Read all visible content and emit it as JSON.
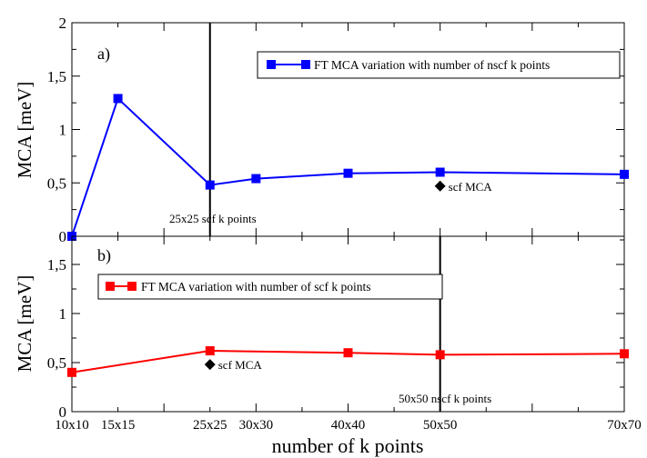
{
  "chart_data": [
    {
      "type": "line",
      "panel_label": "a)",
      "ylabel": "MCA [meV]",
      "ylim": [
        0,
        2
      ],
      "yticks": [
        0,
        0.5,
        1,
        1.5,
        2
      ],
      "ytick_labels": [
        "0",
        "0,5",
        "1",
        "1,5",
        "2"
      ],
      "xlim": [
        10,
        70
      ],
      "legend_position": "top-right",
      "series": [
        {
          "name": "FT MCA variation with number of nscf k points",
          "color": "#0000ff",
          "x": [
            10,
            15,
            25,
            30,
            40,
            50,
            70
          ],
          "values": [
            0.0,
            1.29,
            0.48,
            0.54,
            0.59,
            0.6,
            0.58
          ]
        }
      ],
      "reference_line": {
        "x": 25,
        "label": "25x25 scf k points"
      },
      "reference_point": {
        "x": 50,
        "y": 0.47,
        "label": "scf MCA",
        "color": "#000000"
      }
    },
    {
      "type": "line",
      "panel_label": "b)",
      "ylabel": "MCA [meV]",
      "ylim": [
        0,
        2
      ],
      "yticks": [
        0,
        0.5,
        1,
        1.5
      ],
      "ytick_labels": [
        "0",
        "0,5",
        "1",
        "1,5"
      ],
      "xlim": [
        10,
        70
      ],
      "legend_position": "top-left",
      "series": [
        {
          "name": "FT MCA variation with number of scf k points",
          "color": "#ff0000",
          "x": [
            10,
            25,
            40,
            50,
            70
          ],
          "values": [
            0.4,
            0.62,
            0.6,
            0.58,
            0.59
          ]
        }
      ],
      "reference_line": {
        "x": 50,
        "label": "50x50 nscf k points"
      },
      "reference_point": {
        "x": 25,
        "y": 0.48,
        "label": "scf MCA",
        "color": "#000000"
      }
    }
  ],
  "x_axis": {
    "title": "number of k points",
    "tick_values": [
      10,
      15,
      25,
      30,
      40,
      50,
      70
    ],
    "tick_labels": [
      "10x10",
      "15x15",
      "25x25",
      "30x30",
      "40x40",
      "50x50",
      "70x70"
    ]
  }
}
